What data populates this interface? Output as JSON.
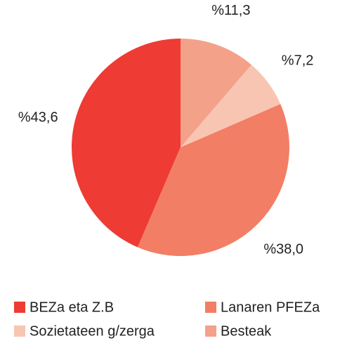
{
  "chart_data": {
    "type": "pie",
    "categories": [
      "BEZa eta Z.B",
      "Lanaren PFEZa",
      "Sozietateen g/zerga",
      "Besteak"
    ],
    "values": [
      43.6,
      38.0,
      7.2,
      11.3
    ],
    "value_labels": [
      "%43,6",
      "%38,0",
      "%7,2",
      "%11,3"
    ],
    "colors": [
      "#ee3b34",
      "#f27e66",
      "#f9c5b3",
      "#f4a18a"
    ],
    "legend": "bottom"
  }
}
